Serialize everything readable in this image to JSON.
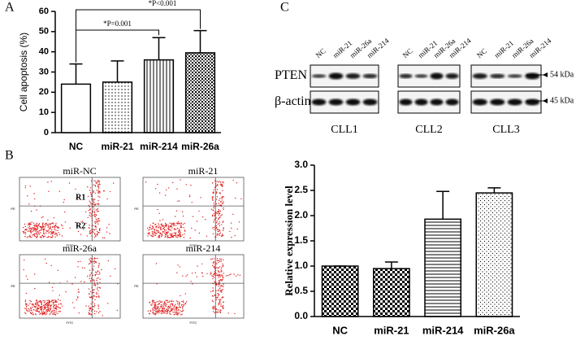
{
  "panel_labels": [
    "A",
    "B",
    "C"
  ],
  "chart_data": [
    {
      "type": "bar",
      "ylabel": "Cell apoptosis (%)",
      "categories": [
        "NC",
        "miR-21",
        "miR-214",
        "miR-26a"
      ],
      "values": [
        24,
        25,
        36,
        39.5
      ],
      "errors": [
        10,
        10.5,
        11,
        11
      ],
      "ylim": [
        0,
        60
      ],
      "yticks": [
        0,
        10,
        20,
        30,
        40,
        50,
        60
      ],
      "annotations": [
        "*P<0.001",
        "*P=0.001"
      ]
    },
    {
      "type": "bar",
      "ylabel": "Relative expression level",
      "categories": [
        "NC",
        "miR-21",
        "miR-214",
        "miR-26a"
      ],
      "values": [
        1.0,
        0.95,
        1.93,
        2.45
      ],
      "errors": [
        0,
        0.13,
        0.55,
        0.1
      ],
      "ylim": [
        0,
        3.0
      ],
      "yticks": [
        {
          "value": 0,
          "label": "0.0"
        },
        {
          "value": 0.5,
          "label": "0.5"
        },
        {
          "value": 1.0,
          "label": "1.0"
        },
        {
          "value": 1.5,
          "label": "1.5"
        },
        {
          "value": 2.0,
          "label": "2.0"
        },
        {
          "value": 2.5,
          "label": "2.5"
        },
        {
          "value": 3.0,
          "label": "3.0"
        }
      ]
    }
  ],
  "flow": {
    "x_label": "FITC",
    "y_label": "PE",
    "gates": [
      "R1",
      "R2"
    ],
    "plots": [
      {
        "title": "miR-NC"
      },
      {
        "title": "miR-21"
      },
      {
        "title": "miR-26a"
      },
      {
        "title": "miR-214"
      }
    ]
  },
  "blot": {
    "lanes": [
      "NC",
      "miR-21",
      "miR-26a",
      "miR-214"
    ],
    "rows": [
      "PTEN",
      "β-actin"
    ],
    "sizes": [
      "54 kDa",
      "45 kDa"
    ],
    "groups": [
      "CLL1",
      "CLL2",
      "CLL3"
    ]
  }
}
